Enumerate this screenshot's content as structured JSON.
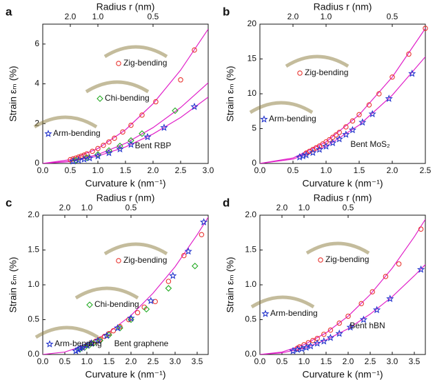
{
  "chart_data": [
    {
      "type": "scatter",
      "panel": "a",
      "top_label": "Radius r (nm)",
      "xlabel": "Curvature k (nm⁻¹)",
      "ylabel": "Strain εₘ (%)",
      "annotation": "Bent RBP",
      "xlim": [
        0,
        3
      ],
      "xticks": [
        {
          "value": 0,
          "label": "0.0"
        },
        0.5,
        {
          "value": 1,
          "label": "1.0"
        },
        1.5,
        {
          "value": 2,
          "label": "2.0"
        },
        2.5,
        {
          "value": 3,
          "label": "3.0"
        }
      ],
      "ylim": [
        0,
        7
      ],
      "yticks": [
        0,
        2,
        4,
        6
      ],
      "top_ticks": [
        {
          "value": 2,
          "label": "2.0"
        },
        {
          "value": 1,
          "label": "1.0"
        },
        0.5
      ],
      "series": [
        {
          "name": "Zig-bending",
          "color": "#e8342f",
          "marker": "circle",
          "x": [
            0.5,
            0.55,
            0.6,
            0.65,
            0.7,
            0.75,
            0.8,
            0.9,
            1.0,
            1.1,
            1.2,
            1.3,
            1.45,
            1.6,
            1.8,
            2.05,
            2.5,
            2.75
          ],
          "values": [
            0.19,
            0.23,
            0.27,
            0.32,
            0.37,
            0.42,
            0.48,
            0.61,
            0.75,
            0.91,
            1.08,
            1.27,
            1.58,
            1.92,
            2.43,
            3.1,
            4.2,
            5.7
          ]
        },
        {
          "name": "Chi-bending",
          "color": "#22aa22",
          "marker": "diamond",
          "x": [
            0.6,
            0.8,
            1.0,
            1.2,
            1.4,
            1.6,
            1.8,
            2.4
          ],
          "values": [
            0.16,
            0.29,
            0.45,
            0.65,
            0.88,
            1.15,
            1.5,
            2.65
          ]
        },
        {
          "name": "Arm-bending",
          "color": "#2233cc",
          "marker": "star",
          "x": [
            0.55,
            0.65,
            0.75,
            0.85,
            1.0,
            1.2,
            1.4,
            1.6,
            1.9,
            2.2,
            2.75
          ],
          "values": [
            0.11,
            0.16,
            0.21,
            0.27,
            0.37,
            0.53,
            0.72,
            0.95,
            1.33,
            1.8,
            2.85
          ]
        }
      ],
      "fits": [
        {
          "color": "#e01ec8",
          "x": [
            0,
            0.5,
            1,
            1.5,
            2,
            2.5,
            3
          ],
          "values": [
            0,
            0.19,
            0.75,
            1.69,
            3.0,
            4.69,
            6.75
          ]
        },
        {
          "color": "#e01ec8",
          "x": [
            0,
            0.5,
            1,
            1.5,
            2,
            2.5,
            3
          ],
          "values": [
            0,
            0.11,
            0.45,
            1.01,
            1.8,
            2.81,
            4.05
          ]
        },
        {
          "color": "#e01ec8",
          "x": [
            0,
            0.5,
            1,
            1.5,
            2,
            2.5,
            3
          ],
          "values": [
            0,
            0.09,
            0.37,
            0.83,
            1.48,
            2.31,
            3.33
          ]
        }
      ]
    },
    {
      "type": "scatter",
      "panel": "b",
      "top_label": "Radius r (nm)",
      "xlabel": "Curvature k (nm⁻¹)",
      "ylabel": "Strain εₘ (%)",
      "annotation": "Bent MoS₂",
      "xlim": [
        0,
        2.5
      ],
      "xticks": [
        {
          "value": 0,
          "label": "0.0"
        },
        0.5,
        {
          "value": 1,
          "label": "1.0"
        },
        1.5,
        {
          "value": 2,
          "label": "2.0"
        },
        2.5
      ],
      "ylim": [
        0,
        20
      ],
      "yticks": [
        0,
        5,
        10,
        15,
        20
      ],
      "top_ticks": [
        {
          "value": 2,
          "label": "2.0"
        },
        {
          "value": 1,
          "label": "1.0"
        },
        0.5
      ],
      "series": [
        {
          "name": "Zig-bending",
          "color": "#e8342f",
          "marker": "circle",
          "x": [
            0.7,
            0.75,
            0.8,
            0.85,
            0.9,
            0.95,
            1.0,
            1.05,
            1.1,
            1.15,
            1.2,
            1.3,
            1.4,
            1.5,
            1.65,
            1.8,
            2.0,
            2.25,
            2.5
          ],
          "values": [
            1.5,
            1.75,
            2.0,
            2.25,
            2.5,
            2.8,
            3.1,
            3.4,
            3.75,
            4.1,
            4.45,
            5.25,
            6.1,
            7.0,
            8.4,
            10.0,
            12.4,
            15.7,
            19.4
          ]
        },
        {
          "name": "Arm-bending",
          "color": "#2233cc",
          "marker": "star",
          "x": [
            0.6,
            0.65,
            0.7,
            0.8,
            0.9,
            1.0,
            1.1,
            1.2,
            1.3,
            1.4,
            1.55,
            1.7,
            1.95,
            2.3
          ],
          "values": [
            0.9,
            1.05,
            1.2,
            1.55,
            2.0,
            2.45,
            2.95,
            3.5,
            4.15,
            4.8,
            5.9,
            7.1,
            9.3,
            12.9
          ]
        }
      ],
      "fits": [
        {
          "color": "#e01ec8",
          "x": [
            0,
            0.5,
            1,
            1.5,
            2,
            2.5
          ],
          "values": [
            0,
            0.78,
            3.1,
            6.98,
            12.4,
            19.38
          ]
        },
        {
          "color": "#e01ec8",
          "x": [
            0,
            0.5,
            1,
            1.5,
            2,
            2.5
          ],
          "values": [
            0,
            0.61,
            2.45,
            5.51,
            9.8,
            15.31
          ]
        }
      ]
    },
    {
      "type": "scatter",
      "panel": "c",
      "top_label": "Radius r (nm)",
      "xlabel": "Curvature k (nm⁻¹)",
      "ylabel": "Strain εₘ (%)",
      "annotation": "Bent graphene",
      "xlim": [
        0,
        3.75
      ],
      "xticks": [
        {
          "value": 0,
          "label": "0.0"
        },
        0.5,
        {
          "value": 1,
          "label": "1.0"
        },
        1.5,
        {
          "value": 2,
          "label": "2.0"
        },
        2.5,
        {
          "value": 3,
          "label": "3.0"
        },
        3.5
      ],
      "ylim": [
        0,
        2
      ],
      "yticks": [
        {
          "value": 0,
          "label": "0.0"
        },
        0.5,
        {
          "value": 1,
          "label": "1.0"
        },
        1.5,
        {
          "value": 2,
          "label": "2.0"
        }
      ],
      "top_ticks": [
        {
          "value": 2,
          "label": "2.0"
        },
        {
          "value": 1,
          "label": "1.0"
        },
        0.5
      ],
      "series": [
        {
          "name": "Zig-bending",
          "color": "#e8342f",
          "marker": "circle",
          "x": [
            0.9,
            1.0,
            1.1,
            1.2,
            1.3,
            1.4,
            1.5,
            1.6,
            1.75,
            1.95,
            2.15,
            2.3,
            2.55,
            2.85,
            3.2,
            3.6
          ],
          "values": [
            0.1,
            0.13,
            0.16,
            0.19,
            0.22,
            0.26,
            0.3,
            0.34,
            0.4,
            0.5,
            0.6,
            0.68,
            0.76,
            1.05,
            1.42,
            1.72
          ]
        },
        {
          "name": "Chi-bending",
          "color": "#22aa22",
          "marker": "diamond",
          "x": [
            0.85,
            0.95,
            1.05,
            1.15,
            1.3,
            1.5,
            1.75,
            2.0,
            2.35,
            2.85,
            3.45
          ],
          "values": [
            0.08,
            0.1,
            0.13,
            0.16,
            0.2,
            0.28,
            0.38,
            0.5,
            0.65,
            0.95,
            1.27
          ]
        },
        {
          "name": "Arm-bending",
          "color": "#2233cc",
          "marker": "star",
          "x": [
            0.75,
            0.8,
            0.85,
            0.9,
            1.0,
            1.1,
            1.25,
            1.45,
            1.7,
            2.0,
            2.45,
            2.95,
            3.3,
            3.65
          ],
          "values": [
            0.05,
            0.07,
            0.09,
            0.1,
            0.13,
            0.16,
            0.2,
            0.27,
            0.38,
            0.52,
            0.77,
            1.13,
            1.48,
            1.9
          ]
        }
      ],
      "fits": [
        {
          "color": "#e01ec8",
          "x": [
            0,
            0.5,
            1,
            1.5,
            2,
            2.5,
            3,
            3.5,
            3.75
          ],
          "values": [
            0,
            0.035,
            0.14,
            0.32,
            0.56,
            0.88,
            1.26,
            1.72,
            1.97
          ]
        }
      ]
    },
    {
      "type": "scatter",
      "panel": "d",
      "top_label": "Radius r (nm)",
      "xlabel": "Curvature k (nm⁻¹)",
      "ylabel": "Strain εₘ (%)",
      "annotation": "Bent hBN",
      "xlim": [
        0,
        3.75
      ],
      "xticks": [
        {
          "value": 0,
          "label": "0.0"
        },
        0.5,
        {
          "value": 1,
          "label": "1.0"
        },
        1.5,
        {
          "value": 2,
          "label": "2.0"
        },
        2.5,
        {
          "value": 3,
          "label": "3.0"
        },
        3.5
      ],
      "ylim": [
        0,
        2
      ],
      "yticks": [
        {
          "value": 0,
          "label": "0.0"
        },
        0.5,
        {
          "value": 1,
          "label": "1.0"
        },
        1.5,
        {
          "value": 2,
          "label": "2.0"
        }
      ],
      "top_ticks": [
        {
          "value": 2,
          "label": "2.0"
        },
        {
          "value": 1,
          "label": "1.0"
        },
        0.5
      ],
      "series": [
        {
          "name": "Zig-bending",
          "color": "#e8342f",
          "marker": "circle",
          "x": [
            0.85,
            0.9,
            1.0,
            1.1,
            1.2,
            1.3,
            1.45,
            1.6,
            1.8,
            2.0,
            2.3,
            2.55,
            2.85,
            3.15,
            3.65
          ],
          "values": [
            0.09,
            0.11,
            0.14,
            0.17,
            0.2,
            0.23,
            0.29,
            0.35,
            0.45,
            0.55,
            0.73,
            0.9,
            1.12,
            1.3,
            1.8
          ]
        },
        {
          "name": "Arm-bending",
          "color": "#2233cc",
          "marker": "star",
          "x": [
            0.75,
            0.85,
            0.95,
            1.05,
            1.15,
            1.3,
            1.45,
            1.6,
            1.8,
            2.05,
            2.35,
            2.65,
            2.95,
            3.65
          ],
          "values": [
            0.05,
            0.07,
            0.08,
            0.1,
            0.12,
            0.16,
            0.19,
            0.24,
            0.3,
            0.39,
            0.5,
            0.64,
            0.8,
            1.22
          ]
        }
      ],
      "fits": [
        {
          "color": "#e01ec8",
          "x": [
            0,
            0.5,
            1,
            1.5,
            2,
            2.5,
            3,
            3.5,
            3.75
          ],
          "values": [
            0,
            0.035,
            0.14,
            0.31,
            0.55,
            0.86,
            1.24,
            1.69,
            1.94
          ]
        },
        {
          "color": "#e01ec8",
          "x": [
            0,
            0.5,
            1,
            1.5,
            2,
            2.5,
            3,
            3.5,
            3.75
          ],
          "values": [
            0,
            0.023,
            0.09,
            0.21,
            0.37,
            0.58,
            0.83,
            1.13,
            1.29
          ]
        }
      ]
    }
  ]
}
